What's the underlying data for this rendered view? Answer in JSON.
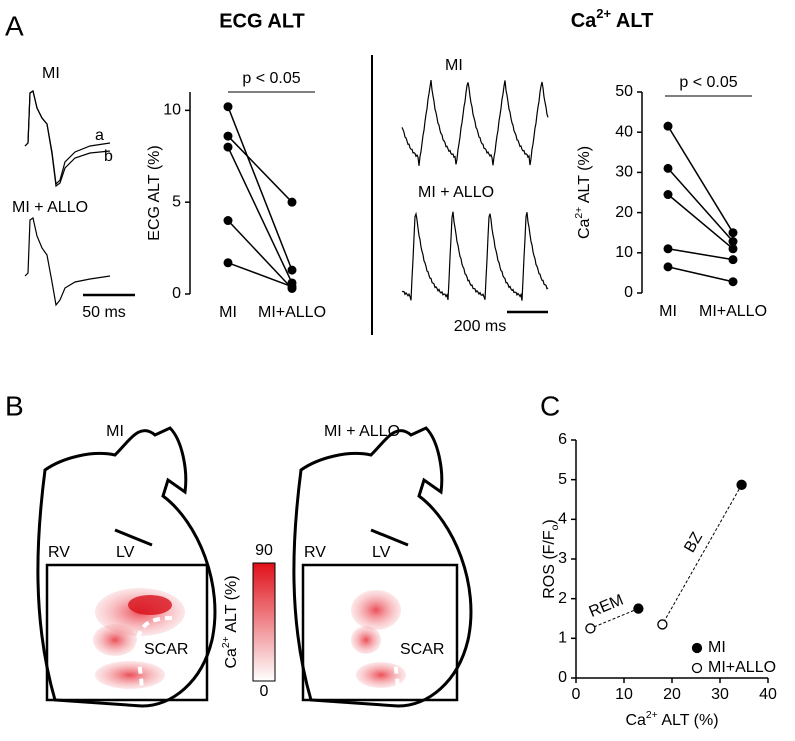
{
  "panel_labels": {
    "a": "A",
    "b": "B",
    "c": "C"
  },
  "panel_a": {
    "trace_labels": [
      "MI",
      "MI + ALLO",
      "MI",
      "MI + ALLO"
    ],
    "trace_curve_labels": [
      "a",
      "b"
    ],
    "scale_bars": [
      "50 ms",
      "200 ms"
    ]
  },
  "panel_b": {
    "conditions": [
      "MI",
      "MI + ALLO"
    ],
    "regions": [
      "RV",
      "LV",
      "SCAR"
    ],
    "colorbar": {
      "label": [
        "Ca",
        "2+",
        " ALT (%)"
      ],
      "max": 90,
      "min": 0
    }
  },
  "chart_data": [
    {
      "type": "paired",
      "title": "ECG ALT",
      "y_label": "ECG ALT (%)",
      "annotation": "p < 0.05",
      "categories": [
        "MI",
        "MI+ALLO"
      ],
      "color": "#000000",
      "values": [
        [
          10.2,
          1.3
        ],
        [
          8.6,
          5.0
        ],
        [
          8.0,
          0.6
        ],
        [
          4.0,
          0.3
        ],
        [
          1.7,
          0.4
        ]
      ],
      "ylim": [
        0,
        11
      ],
      "yticks": [
        0,
        5,
        10
      ]
    },
    {
      "type": "paired",
      "title": [
        "Ca",
        "2+",
        " ALT"
      ],
      "y_label": [
        "Ca",
        "2+",
        " ALT (%)"
      ],
      "annotation": "p < 0.05",
      "categories": [
        "MI",
        "MI+ALLO"
      ],
      "color": "#000000",
      "values": [
        [
          41.5,
          15.0
        ],
        [
          31.0,
          12.8
        ],
        [
          24.5,
          11.0
        ],
        [
          11.0,
          8.3
        ],
        [
          6.5,
          2.8
        ]
      ],
      "ylim": [
        0,
        50
      ],
      "yticks": [
        0,
        10,
        20,
        30,
        40,
        50
      ]
    },
    {
      "type": "scatter",
      "x_label": [
        "Ca",
        "2+",
        " ALT (%)"
      ],
      "y_label": [
        "ROS (F/F",
        "o",
        ")"
      ],
      "annotations": [
        "REM",
        "BZ"
      ],
      "series": [
        {
          "name": "MI",
          "color": "#000000",
          "filled": true,
          "x": [
            13,
            34.5
          ],
          "values": [
            1.75,
            4.87
          ]
        },
        {
          "name": "MI+ALLO",
          "color": "#000000",
          "filled": false,
          "x": [
            3,
            18
          ],
          "values": [
            1.25,
            1.35
          ]
        }
      ],
      "xlim": [
        0,
        40
      ],
      "xticks": [
        0,
        10,
        20,
        30,
        40
      ],
      "ylim": [
        0,
        6
      ],
      "yticks": [
        0,
        1,
        2,
        3,
        4,
        5,
        6
      ]
    }
  ]
}
